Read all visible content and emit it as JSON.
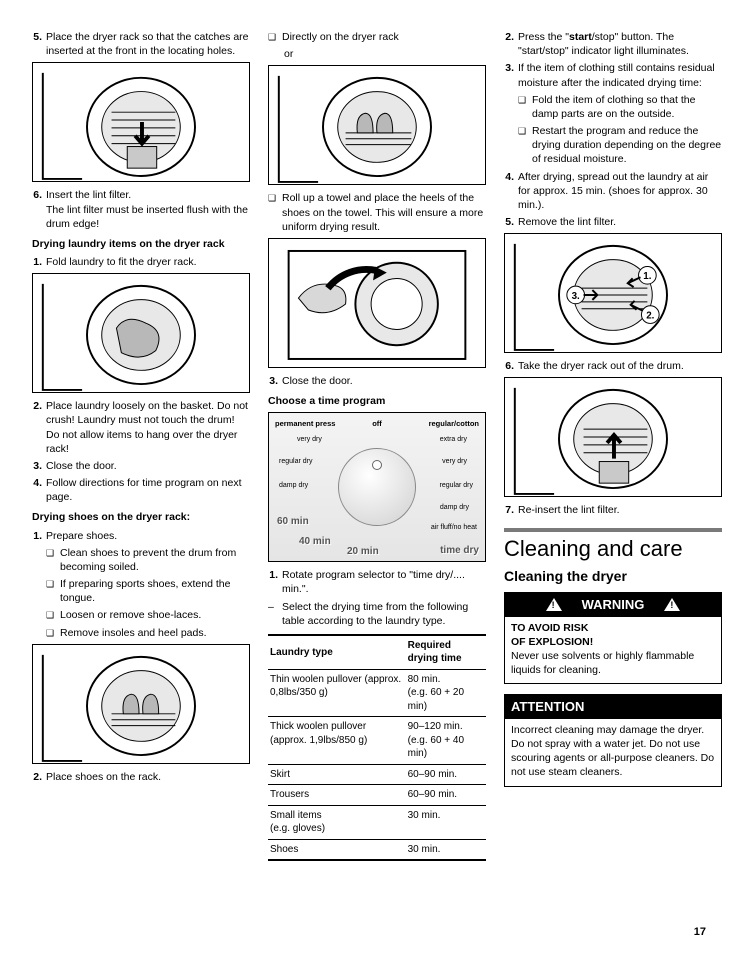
{
  "col1": {
    "step5": "Place the dryer rack so that the catches are inserted at the front in the locating holes.",
    "step6a": "Insert the lint filter.",
    "step6b": "The lint filter must be inserted flush with the drum edge!",
    "head_laundry": "Drying laundry items on the dryer rack",
    "l1": "Fold laundry to fit the dryer rack.",
    "l2": "Place laundry loosely on the basket. Do not crush! Laundry must not touch the drum! Do not allow items to hang over the dryer rack!",
    "l3": "Close the door.",
    "l4": "Follow directions for time program on next page.",
    "head_shoes": "Drying shoes on the dryer rack:",
    "s1": "Prepare shoes.",
    "s1a": "Clean shoes to prevent the drum from becoming soiled.",
    "s1b": "If preparing sports shoes, extend the tongue.",
    "s1c": "Loosen or remove shoe-laces.",
    "s1d": "Remove insoles and heel pads.",
    "s2": "Place shoes on the rack."
  },
  "col2": {
    "d1": "Directly on the dryer rack",
    "or": "or",
    "d2": "Roll up a towel and place the heels of the shoes on the towel. This will ensure a more uniform drying result.",
    "c3": "Close the door.",
    "head_time": "Choose a time program",
    "dial": {
      "perm": "permanent press",
      "off": "off",
      "reg": "regular/cotton",
      "vd": "very dry",
      "ed": "extra dry",
      "rd": "regular dry",
      "dd": "damp dry",
      "af": "air fluff/no heat",
      "td": "time dry",
      "m60": "60 min",
      "m40": "40 min",
      "m20": "20 min"
    },
    "r1": "Rotate program selector to \"time dry/.... min.\".",
    "r2": "Select the drying time from the following table according to the laundry type.",
    "table": {
      "h1": "Laundry type",
      "h2": "Required drying time",
      "rows": [
        [
          "Thin woolen pullover (approx. 0,8lbs/350 g)",
          "80 min.\n(e.g. 60 + 20 min)"
        ],
        [
          "Thick woolen pullover (approx. 1,9lbs/850 g)",
          "90–120 min.\n(e.g. 60 + 40 min)"
        ],
        [
          "Skirt",
          "60–90 min."
        ],
        [
          "Trousers",
          "60–90 min."
        ],
        [
          "Small items\n(e.g. gloves)",
          "30 min."
        ],
        [
          "Shoes",
          "30 min."
        ]
      ]
    }
  },
  "col3": {
    "p2a": "Press the \"",
    "p2b": "start",
    "p2c": "/stop\" button. The \"start/stop\" indicator light illuminates.",
    "p3": "If the item of clothing still contains residual moisture after the indicated drying time:",
    "p3a": "Fold the item of clothing so that the damp parts are on the outside.",
    "p3b": "Restart the program and reduce the drying duration depending on the degree of residual moisture.",
    "p4": "After drying, spread out the laundry at air for approx. 15 min. (shoes for approx. 30 min.).",
    "p5": "Remove the lint filter.",
    "p6": "Take the dryer rack out of the drum.",
    "p7": "Re-insert the lint filter.",
    "sec_title": "Cleaning and care",
    "sec_sub": "Cleaning the dryer",
    "warn_head": "WARNING",
    "warn_b1": "TO AVOID RISK",
    "warn_b2": "OF EXPLOSION!",
    "warn_t": "Never use solvents or highly flammable liquids for cleaning.",
    "att_head": "ATTENTION",
    "att_t": "Incorrect cleaning may damage the dryer. Do not spray with a water jet. Do not use scouring agents or all-purpose cleaners. Do not use steam cleaners."
  },
  "pagenum": "17"
}
